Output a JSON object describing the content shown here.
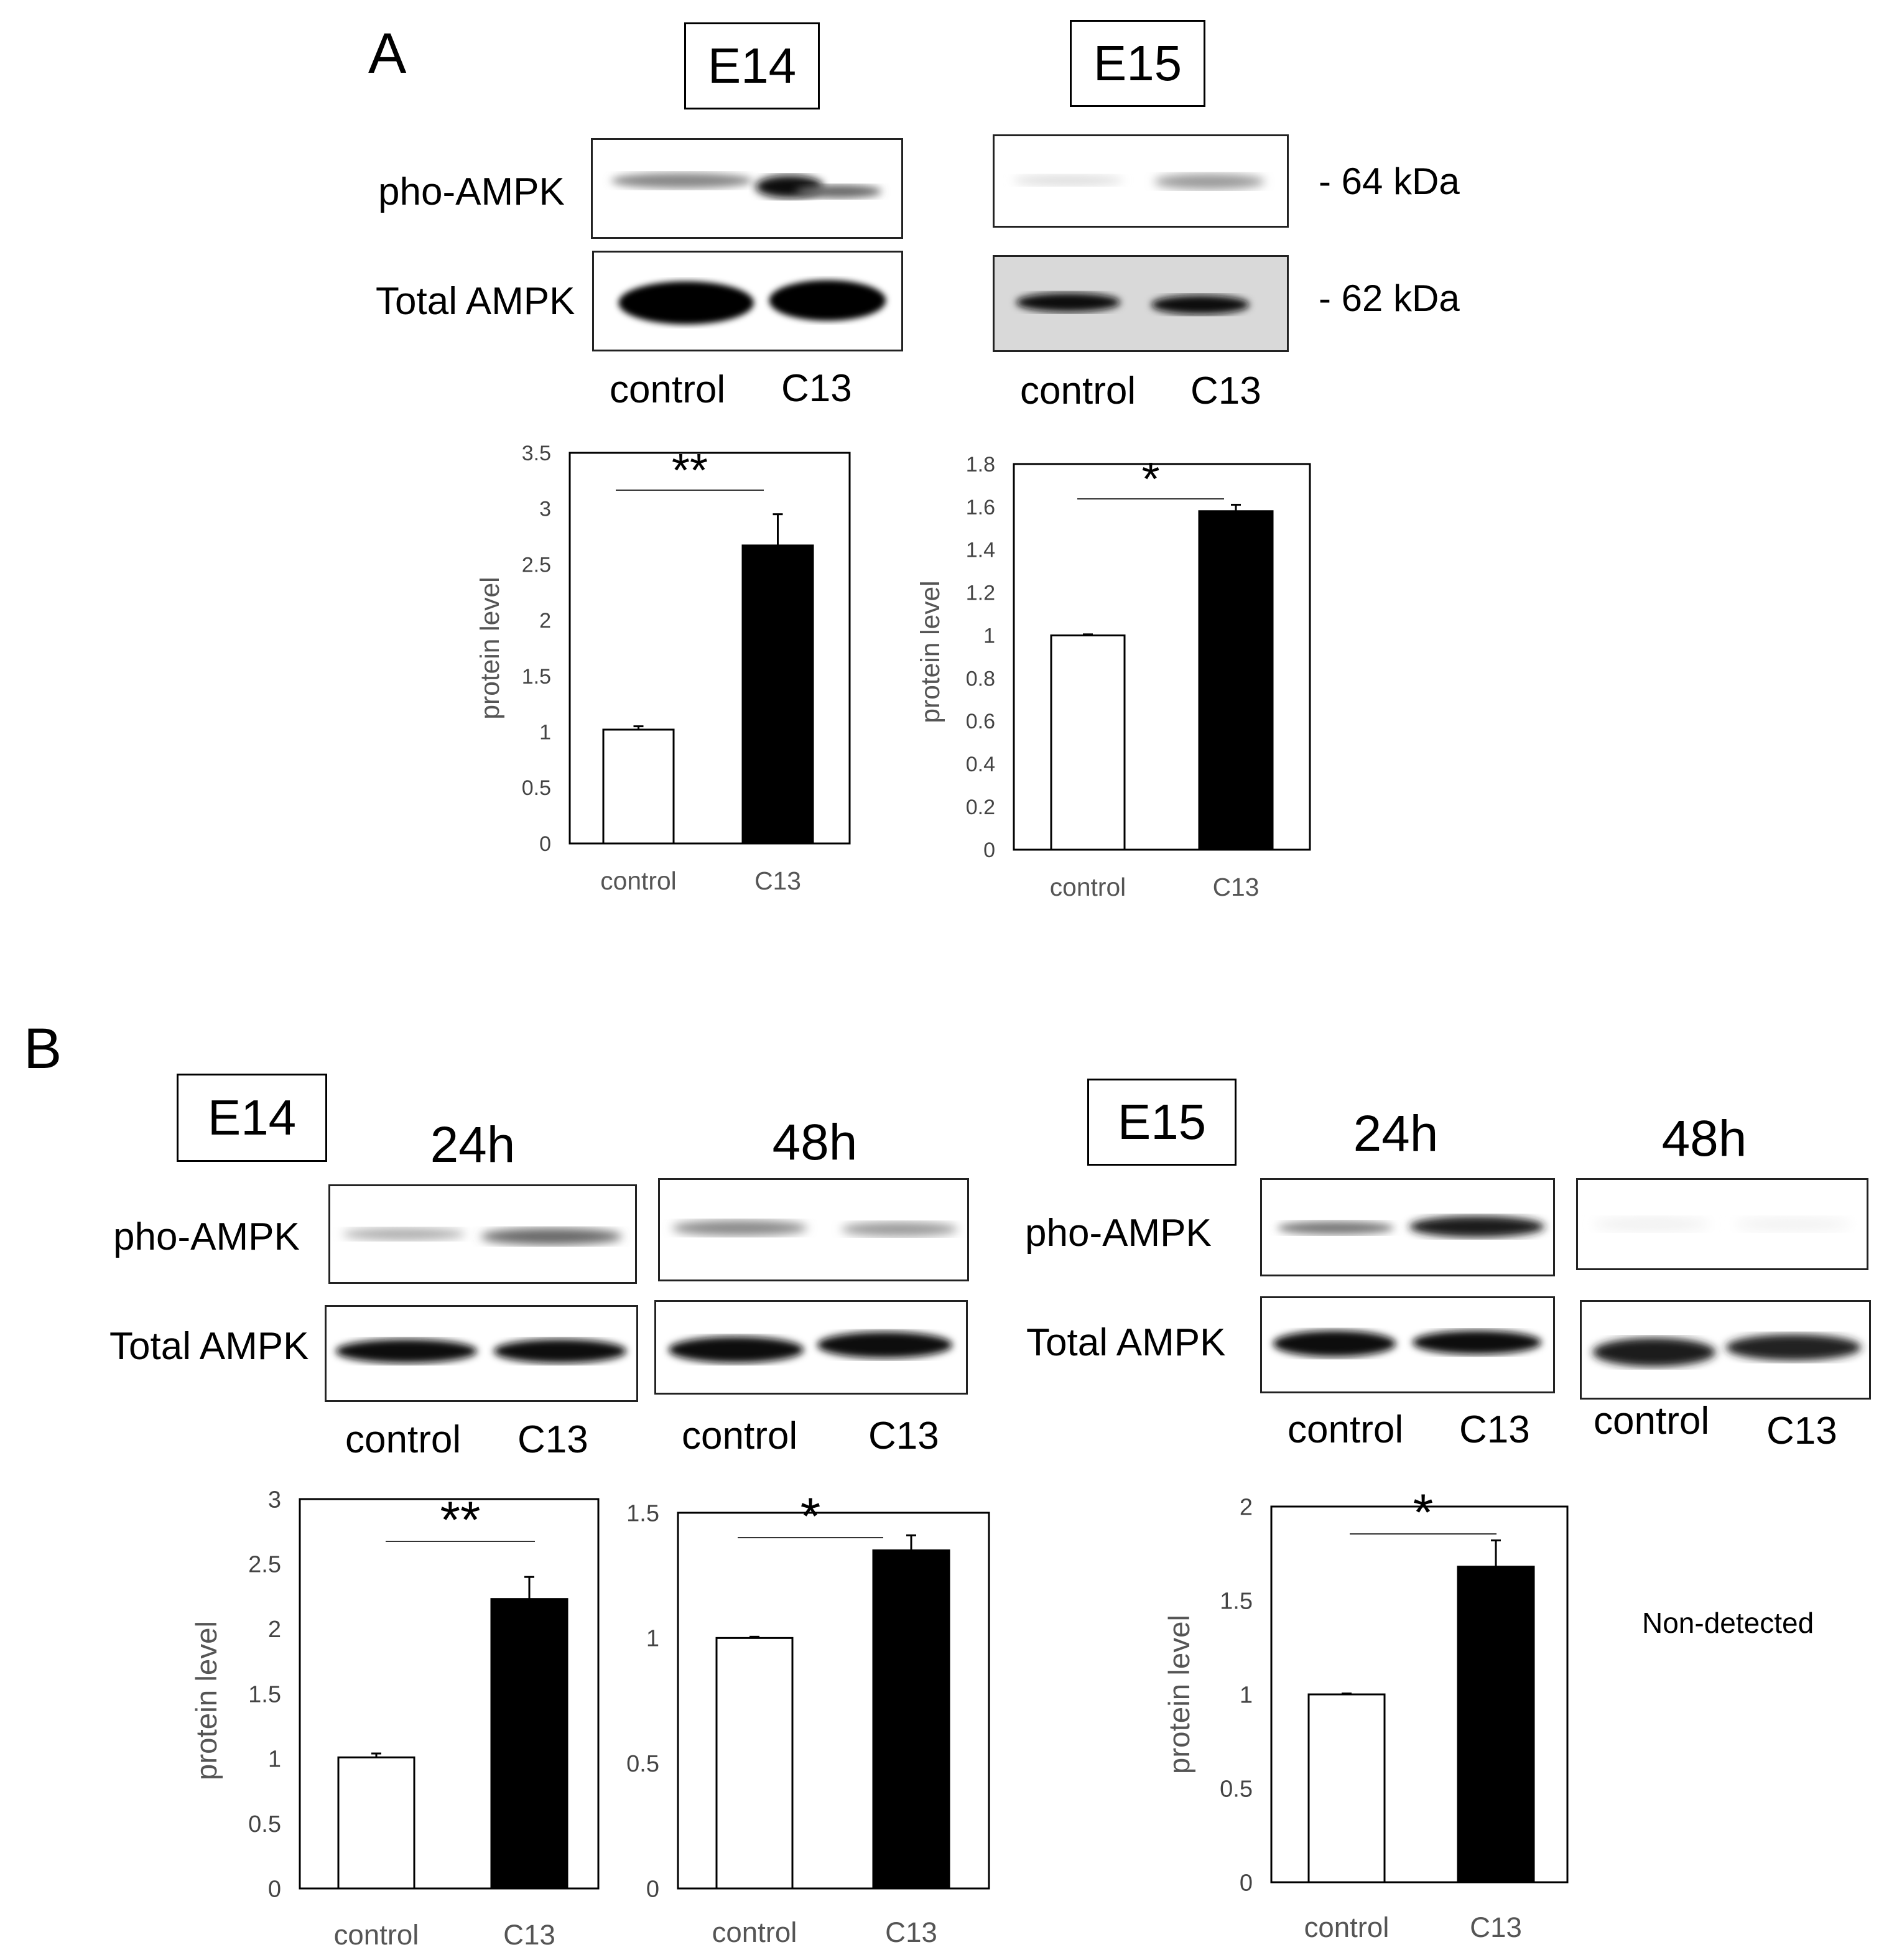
{
  "panel_a": {
    "letter": "A",
    "e14": {
      "stage": "E14",
      "pho_label": "pho-AMPK",
      "total_label": "Total AMPK",
      "lanes": [
        "control",
        "C13"
      ]
    },
    "e15": {
      "stage": "E15",
      "lanes": [
        "control",
        "C13"
      ],
      "markers": [
        "- 64 kDa",
        "- 62 kDa"
      ]
    }
  },
  "panel_b": {
    "letter": "B",
    "e14": {
      "stage": "E14",
      "pho_label": "pho-AMPK",
      "total_label": "Total AMPK",
      "time_24": "24h",
      "time_48": "48h",
      "lanes_24": [
        "control",
        "C13"
      ],
      "lanes_48": [
        "control",
        "C13"
      ]
    },
    "e15": {
      "stage": "E15",
      "pho_label": "pho-AMPK",
      "total_label": "Total AMPK",
      "time_24": "24h",
      "time_48": "48h",
      "lanes_24": [
        "control",
        "C13"
      ],
      "lanes_48": [
        "control",
        "C13"
      ],
      "non_detected": "Non-detected"
    }
  },
  "chart_data": [
    {
      "id": "a-e14",
      "type": "bar",
      "categories": [
        "control",
        "C13"
      ],
      "values": [
        1.02,
        2.67
      ],
      "errors": [
        0.03,
        0.28
      ],
      "ylabel": "protein level",
      "ylim": [
        0,
        3.5
      ],
      "yticks": [
        "0",
        "0.5",
        "1",
        "1.5",
        "2",
        "2.5",
        "3",
        "3.5"
      ],
      "significance": "**",
      "bar_colors": [
        "#ffffff",
        "#000000"
      ]
    },
    {
      "id": "a-e15",
      "type": "bar",
      "categories": [
        "control",
        "C13"
      ],
      "values": [
        1.0,
        1.58
      ],
      "errors": [
        0.005,
        0.03
      ],
      "ylabel": "protein level",
      "ylim": [
        0,
        1.8
      ],
      "yticks": [
        "0",
        "0.2",
        "0.4",
        "0.6",
        "0.8",
        "1",
        "1.2",
        "1.4",
        "1.6",
        "1.8"
      ],
      "significance": "*",
      "bar_colors": [
        "#ffffff",
        "#000000"
      ]
    },
    {
      "id": "b-e14-24h",
      "type": "bar",
      "categories": [
        "control",
        "C13"
      ],
      "values": [
        1.01,
        2.23
      ],
      "errors": [
        0.03,
        0.17
      ],
      "ylabel": "protein level",
      "ylim": [
        0,
        3
      ],
      "yticks": [
        "0",
        "0.5",
        "1",
        "1.5",
        "2",
        "2.5",
        "3"
      ],
      "significance": "**",
      "bar_colors": [
        "#ffffff",
        "#000000"
      ]
    },
    {
      "id": "b-e14-48h",
      "type": "bar",
      "categories": [
        "control",
        "C13"
      ],
      "values": [
        1.0,
        1.35
      ],
      "errors": [
        0.005,
        0.06
      ],
      "ylabel": "",
      "ylim": [
        0,
        1.5
      ],
      "yticks": [
        "0",
        "0.5",
        "1",
        "1.5"
      ],
      "significance": "*",
      "bar_colors": [
        "#ffffff",
        "#000000"
      ]
    },
    {
      "id": "b-e15-24h",
      "type": "bar",
      "categories": [
        "control",
        "C13"
      ],
      "values": [
        1.0,
        1.68
      ],
      "errors": [
        0.005,
        0.14
      ],
      "ylabel": "protein level",
      "ylim": [
        0,
        2
      ],
      "yticks": [
        "0",
        "0.5",
        "1",
        "1.5",
        "2"
      ],
      "significance": "*",
      "bar_colors": [
        "#ffffff",
        "#000000"
      ]
    }
  ]
}
